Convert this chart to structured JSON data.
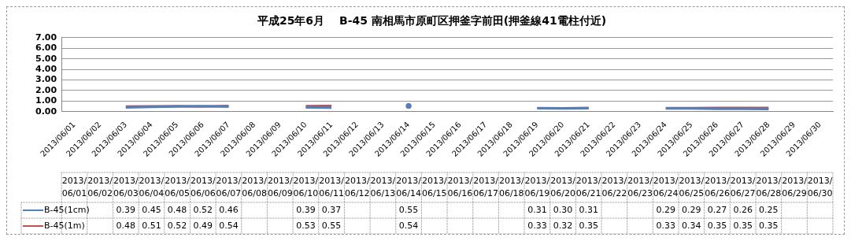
{
  "chart_data": {
    "type": "line",
    "title": "平成25年6月　 B-45 南相馬市原町区押釜字前田(押釜線41電柱付近)",
    "categories": [
      "2013/06/01",
      "2013/06/02",
      "2013/06/03",
      "2013/06/04",
      "2013/06/05",
      "2013/06/06",
      "2013/06/07",
      "2013/06/08",
      "2013/06/09",
      "2013/06/10",
      "2013/06/11",
      "2013/06/12",
      "2013/06/13",
      "2013/06/14",
      "2013/06/15",
      "2013/06/16",
      "2013/06/17",
      "2013/06/18",
      "2013/06/19",
      "2013/06/20",
      "2013/06/21",
      "2013/06/22",
      "2013/06/23",
      "2013/06/24",
      "2013/06/25",
      "2013/06/26",
      "2013/06/27",
      "2013/06/28",
      "2013/06/29",
      "2013/06/30"
    ],
    "series": [
      {
        "name": "B-45(1cm)",
        "color": "#4f81bd",
        "values": [
          null,
          null,
          0.39,
          0.45,
          0.48,
          0.52,
          0.46,
          null,
          null,
          0.39,
          0.37,
          null,
          null,
          0.55,
          null,
          null,
          null,
          null,
          0.31,
          0.3,
          0.31,
          null,
          null,
          0.29,
          0.29,
          0.27,
          0.26,
          0.25,
          null,
          null
        ],
        "value_labels": [
          null,
          null,
          "0.39",
          "0.45",
          "0.48",
          "0.52",
          "0.46",
          null,
          null,
          "0.39",
          "0.37",
          null,
          null,
          "0.55",
          null,
          null,
          null,
          null,
          "0.31",
          "0.30",
          "0.31",
          null,
          null,
          "0.29",
          "0.29",
          "0.27",
          "0.26",
          "0.25",
          null,
          null
        ]
      },
      {
        "name": "B-45(1m)",
        "color": "#c0504d",
        "values": [
          null,
          null,
          0.48,
          0.51,
          0.52,
          0.49,
          0.54,
          null,
          null,
          0.53,
          0.55,
          null,
          null,
          0.54,
          null,
          null,
          null,
          null,
          0.33,
          0.32,
          0.35,
          null,
          null,
          0.33,
          0.34,
          0.35,
          0.35,
          0.35,
          null,
          null
        ],
        "value_labels": [
          null,
          null,
          "0.48",
          "0.51",
          "0.52",
          "0.49",
          "0.54",
          null,
          null,
          "0.53",
          "0.55",
          null,
          null,
          "0.54",
          null,
          null,
          null,
          null,
          "0.33",
          "0.32",
          "0.35",
          null,
          null,
          "0.33",
          "0.34",
          "0.35",
          "0.35",
          "0.35",
          null,
          null
        ]
      }
    ],
    "ylim": [
      0,
      7
    ],
    "yticks": [
      {
        "value": 0,
        "label": "0.00"
      },
      {
        "value": 1,
        "label": "1.00"
      },
      {
        "value": 2,
        "label": "2.00"
      },
      {
        "value": 3,
        "label": "3.00"
      },
      {
        "value": 4,
        "label": "4.00"
      },
      {
        "value": 5,
        "label": "5.00"
      },
      {
        "value": 6,
        "label": "6.00"
      },
      {
        "value": 7,
        "label": "7.00"
      }
    ],
    "grid": "y",
    "legend": "bottom left",
    "marker": "none",
    "line_style": "solid"
  }
}
